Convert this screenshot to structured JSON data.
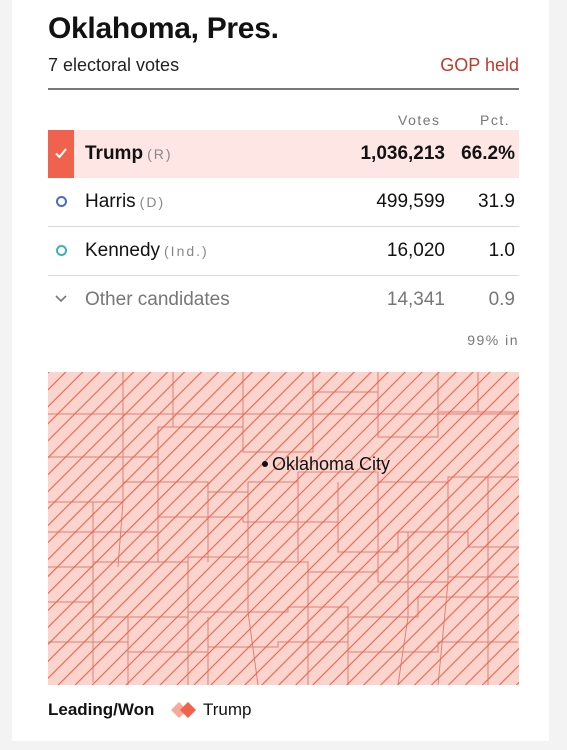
{
  "header": {
    "title": "Oklahoma, Pres.",
    "electoral_votes": "7 electoral votes",
    "status": "GOP held"
  },
  "table": {
    "col_votes": "Votes",
    "col_pct": "Pct.",
    "rows": [
      {
        "name": "Trump",
        "party": "(R)",
        "votes": "1,036,213",
        "pct": "66.2%",
        "color": "#f0624d",
        "winner": true
      },
      {
        "name": "Harris",
        "party": "(D)",
        "votes": "499,599",
        "pct": "31.9",
        "color": "#4a6fb5"
      },
      {
        "name": "Kennedy",
        "party": "(Ind.)",
        "votes": "16,020",
        "pct": "1.0",
        "color": "#3cb3b0"
      },
      {
        "name": "Other candidates",
        "votes": "14,341",
        "pct": "0.9"
      }
    ],
    "reporting": "99% in"
  },
  "map": {
    "city": "Oklahoma City",
    "fill_color": "#fbd4cd",
    "hatch_color": "#f0624d"
  },
  "legend": {
    "label": "Leading/Won",
    "candidate": "Trump"
  }
}
